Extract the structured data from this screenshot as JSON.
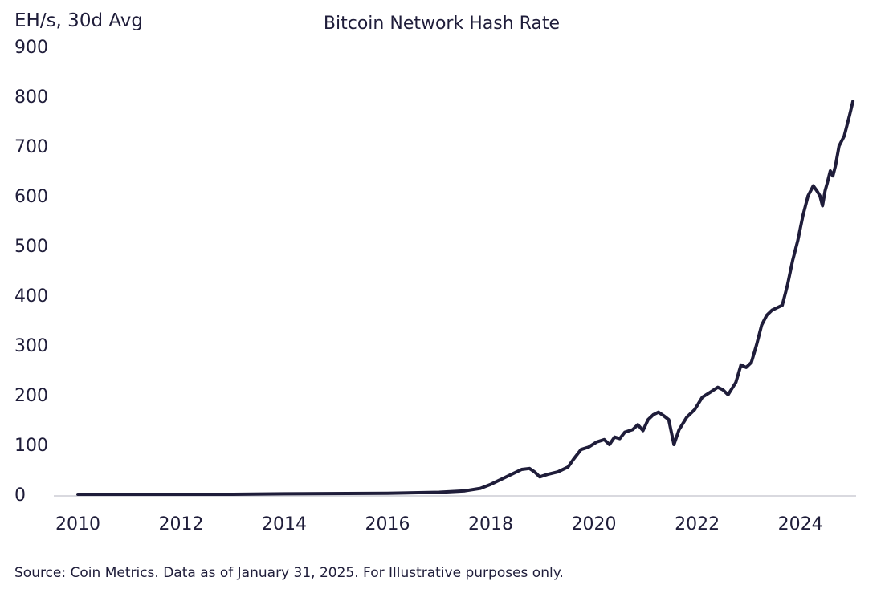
{
  "chart_data": {
    "type": "line",
    "title": "Bitcoin Network Hash Rate",
    "ylabel": "EH/s, 30d Avg",
    "xlabel": "",
    "source": "Source: Coin Metrics. Data as of January 31, 2025. For Illustrative purposes only.",
    "xlim": [
      2010,
      2025.08
    ],
    "ylim": [
      0,
      900
    ],
    "x_ticks": [
      "2010",
      "2012",
      "2014",
      "2016",
      "2018",
      "2020",
      "2022",
      "2024"
    ],
    "y_ticks": [
      "900",
      "800",
      "700",
      "600",
      "500",
      "400",
      "300",
      "200",
      "100",
      "0"
    ],
    "grid": false,
    "colors": {
      "line": "#1f1d3a",
      "axis": "#d9d9df",
      "text": "#1f1d3a"
    },
    "series": [
      {
        "x": [
          2010.0,
          2013.0,
          2014.0,
          2016.0,
          2017.0,
          2017.5,
          2017.8,
          2018.0,
          2018.2,
          2018.4,
          2018.6,
          2018.75,
          2018.85,
          2018.95,
          2019.1,
          2019.3,
          2019.5,
          2019.6,
          2019.75,
          2019.9,
          2020.05,
          2020.2,
          2020.3,
          2020.4,
          2020.5,
          2020.6,
          2020.75,
          2020.85,
          2020.95,
          2021.05,
          2021.15,
          2021.25,
          2021.35,
          2021.45,
          2021.55,
          2021.65,
          2021.8,
          2021.95,
          2022.1,
          2022.25,
          2022.4,
          2022.5,
          2022.6,
          2022.75,
          2022.85,
          2022.95,
          2023.05,
          2023.15,
          2023.25,
          2023.35,
          2023.45,
          2023.55,
          2023.65,
          2023.75,
          2023.85,
          2023.95,
          2024.05,
          2024.15,
          2024.25,
          2024.32,
          2024.38,
          2024.43,
          2024.48,
          2024.52,
          2024.58,
          2024.63,
          2024.68,
          2024.75,
          2024.85,
          2024.95,
          2025.02
        ],
        "y": [
          0,
          0,
          1,
          2,
          4,
          7,
          12,
          20,
          30,
          40,
          50,
          52,
          45,
          35,
          40,
          45,
          55,
          70,
          90,
          95,
          105,
          110,
          100,
          115,
          112,
          125,
          130,
          140,
          128,
          150,
          160,
          165,
          158,
          150,
          100,
          130,
          155,
          170,
          195,
          205,
          215,
          210,
          200,
          225,
          260,
          255,
          265,
          300,
          340,
          360,
          370,
          375,
          380,
          420,
          470,
          510,
          560,
          600,
          620,
          610,
          600,
          580,
          610,
          625,
          650,
          640,
          660,
          700,
          720,
          760,
          790
        ]
      }
    ]
  }
}
